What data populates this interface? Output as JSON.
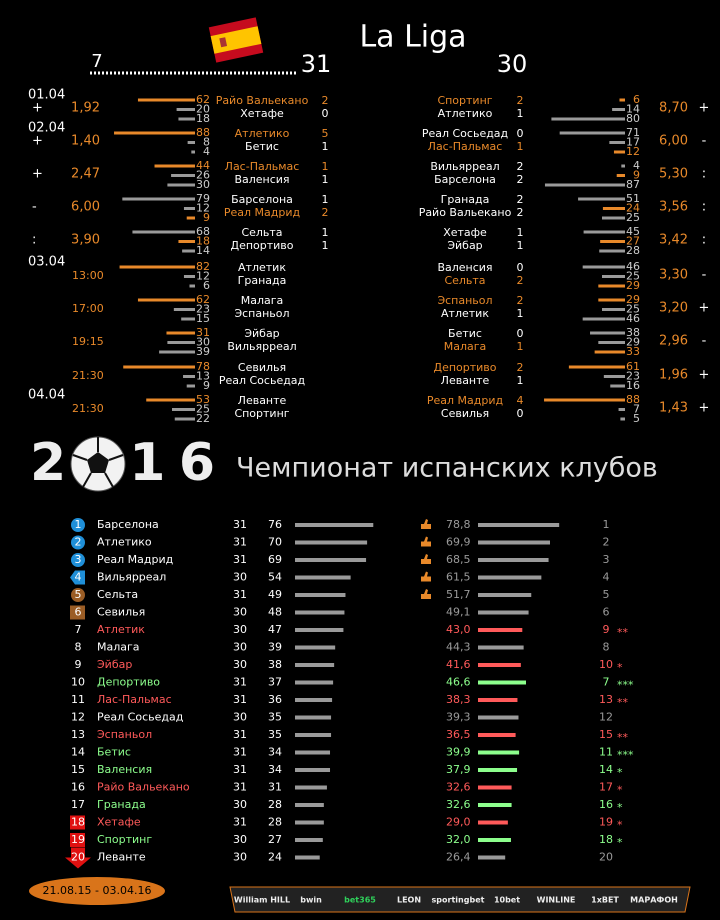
{
  "header": {
    "title": "La Liga",
    "played_left": "7",
    "round_left": "31",
    "round_right": "30"
  },
  "fixtures": {
    "left": [
      {
        "date": "01.04",
        "sign": "+",
        "odds": "1,92",
        "stats": [
          62,
          20,
          18
        ],
        "pick": 0,
        "home": "Райо Вальекано",
        "away": "Хетафе",
        "home_score": "2",
        "away_score": "0",
        "highlight": "home"
      },
      {
        "date": "02.04",
        "sign": "+",
        "odds": "1,40",
        "stats": [
          88,
          8,
          4
        ],
        "pick": 0,
        "home": "Атлетико",
        "away": "Бетис",
        "home_score": "5",
        "away_score": "1",
        "highlight": "home"
      },
      {
        "sign": "+",
        "odds": "2,47",
        "stats": [
          44,
          26,
          30
        ],
        "pick": 0,
        "home": "Лас-Пальмас",
        "away": "Валенсия",
        "home_score": "1",
        "away_score": "1",
        "highlight": "home"
      },
      {
        "sign": "-",
        "odds": "6,00",
        "stats": [
          79,
          12,
          9
        ],
        "pick": 2,
        "home": "Барселона",
        "away": "Реал Мадрид",
        "home_score": "1",
        "away_score": "2",
        "highlight": "away"
      },
      {
        "sign": ":",
        "odds": "3,90",
        "stats": [
          68,
          18,
          14
        ],
        "pick": 1,
        "home": "Сельта",
        "away": "Депортиво",
        "home_score": "1",
        "away_score": "1",
        "highlight": null
      },
      {
        "date": "03.04",
        "time": "13:00",
        "stats": [
          82,
          12,
          6
        ],
        "pick": 0,
        "home": "Атлетик",
        "away": "Гранада"
      },
      {
        "time": "17:00",
        "stats": [
          62,
          23,
          15
        ],
        "pick": 0,
        "home": "Малага",
        "away": "Эспаньол"
      },
      {
        "time": "19:15",
        "stats": [
          31,
          30,
          39
        ],
        "pick": 0,
        "home": "Эйбар",
        "away": "Вильярреал"
      },
      {
        "time": "21:30",
        "stats": [
          78,
          13,
          9
        ],
        "pick": 0,
        "home": "Севилья",
        "away": "Реал Сосьедад"
      },
      {
        "date": "04.04",
        "time": "21:30",
        "stats": [
          53,
          25,
          22
        ],
        "pick": 0,
        "home": "Леванте",
        "away": "Спортинг"
      }
    ],
    "right": [
      {
        "home": "Спортинг",
        "away": "Атлетико",
        "home_score": "2",
        "away_score": "1",
        "highlight": "home",
        "stats": [
          6,
          14,
          80
        ],
        "pick": 0,
        "odds": "8,70",
        "sign": "+"
      },
      {
        "home": "Реал Сосьедад",
        "away": "Лас-Пальмас",
        "home_score": "0",
        "away_score": "1",
        "highlight": "away",
        "stats": [
          71,
          17,
          12
        ],
        "pick": 2,
        "odds": "6,00",
        "sign": "-"
      },
      {
        "home": "Вильярреал",
        "away": "Барселона",
        "home_score": "2",
        "away_score": "2",
        "highlight": null,
        "stats": [
          4,
          9,
          87
        ],
        "pick": 1,
        "odds": "5,30",
        "sign": ":"
      },
      {
        "home": "Гранада",
        "away": "Райо Вальекано",
        "home_score": "2",
        "away_score": "2",
        "highlight": null,
        "stats": [
          51,
          24,
          25
        ],
        "pick": 1,
        "odds": "3,56",
        "sign": ":"
      },
      {
        "home": "Хетафе",
        "away": "Эйбар",
        "home_score": "1",
        "away_score": "1",
        "highlight": null,
        "stats": [
          45,
          27,
          28
        ],
        "pick": 1,
        "odds": "3,42",
        "sign": ":"
      },
      {
        "home": "Валенсия",
        "away": "Сельта",
        "home_score": "0",
        "away_score": "2",
        "highlight": "away",
        "stats": [
          46,
          25,
          29
        ],
        "pick": 2,
        "odds": "3,30",
        "sign": "-"
      },
      {
        "home": "Эспаньол",
        "away": "Атлетик",
        "home_score": "2",
        "away_score": "1",
        "highlight": "home",
        "stats": [
          29,
          25,
          46
        ],
        "pick": 0,
        "odds": "3,20",
        "sign": "+"
      },
      {
        "home": "Бетис",
        "away": "Малага",
        "home_score": "0",
        "away_score": "1",
        "highlight": "away",
        "stats": [
          38,
          29,
          33
        ],
        "pick": 2,
        "odds": "2,96",
        "sign": "-"
      },
      {
        "home": "Депортиво",
        "away": "Леванте",
        "home_score": "2",
        "away_score": "1",
        "highlight": "home",
        "stats": [
          61,
          23,
          16
        ],
        "pick": 0,
        "odds": "1,96",
        "sign": "+"
      },
      {
        "home": "Реал Мадрид",
        "away": "Севилья",
        "home_score": "4",
        "away_score": "0",
        "highlight": "home",
        "stats": [
          88,
          7,
          5
        ],
        "pick": 0,
        "odds": "1,43",
        "sign": "+"
      }
    ]
  },
  "season": {
    "year": "2016",
    "title": "Чемпионат испанских клубов"
  },
  "table": {
    "rows": [
      {
        "pos": "1",
        "team": "Барселона",
        "games": "31",
        "points": 76,
        "pct": 78.8,
        "pct_label": "78,8",
        "rank": "1",
        "stars": ""
      },
      {
        "pos": "2",
        "team": "Атлетико",
        "games": "31",
        "points": 70,
        "pct": 69.9,
        "pct_label": "69,9",
        "rank": "2",
        "stars": ""
      },
      {
        "pos": "3",
        "team": "Реал Мадрид",
        "games": "31",
        "points": 69,
        "pct": 68.5,
        "pct_label": "68,5",
        "rank": "3",
        "stars": ""
      },
      {
        "pos": "4",
        "team": "Вильярреал",
        "games": "30",
        "points": 54,
        "pct": 61.5,
        "pct_label": "61,5",
        "rank": "4",
        "stars": ""
      },
      {
        "pos": "5",
        "team": "Сельта",
        "games": "31",
        "points": 49,
        "pct": 51.7,
        "pct_label": "51,7",
        "rank": "5",
        "stars": ""
      },
      {
        "pos": "6",
        "team": "Севилья",
        "games": "30",
        "points": 48,
        "pct": 49.1,
        "pct_label": "49,1",
        "rank": "6",
        "stars": ""
      },
      {
        "pos": "7",
        "team": "Атлетик",
        "games": "30",
        "points": 47,
        "pct": 43.0,
        "pct_label": "43,0",
        "rank": "9",
        "stars": "**"
      },
      {
        "pos": "8",
        "team": "Малага",
        "games": "30",
        "points": 39,
        "pct": 44.3,
        "pct_label": "44,3",
        "rank": "8",
        "stars": ""
      },
      {
        "pos": "9",
        "team": "Эйбар",
        "games": "30",
        "points": 38,
        "pct": 41.6,
        "pct_label": "41,6",
        "rank": "10",
        "stars": "*"
      },
      {
        "pos": "10",
        "team": "Депортиво",
        "games": "31",
        "points": 37,
        "pct": 46.6,
        "pct_label": "46,6",
        "rank": "7",
        "stars": "***"
      },
      {
        "pos": "11",
        "team": "Лас-Пальмас",
        "games": "31",
        "points": 36,
        "pct": 38.3,
        "pct_label": "38,3",
        "rank": "13",
        "stars": "**"
      },
      {
        "pos": "12",
        "team": "Реал Сосьедад",
        "games": "30",
        "points": 35,
        "pct": 39.3,
        "pct_label": "39,3",
        "rank": "12",
        "stars": ""
      },
      {
        "pos": "13",
        "team": "Эспаньол",
        "games": "31",
        "points": 35,
        "pct": 36.5,
        "pct_label": "36,5",
        "rank": "15",
        "stars": "**"
      },
      {
        "pos": "14",
        "team": "Бетис",
        "games": "31",
        "points": 34,
        "pct": 39.9,
        "pct_label": "39,9",
        "rank": "11",
        "stars": "***"
      },
      {
        "pos": "15",
        "team": "Валенсия",
        "games": "31",
        "points": 34,
        "pct": 37.9,
        "pct_label": "37,9",
        "rank": "14",
        "stars": "*"
      },
      {
        "pos": "16",
        "team": "Райо Вальекано",
        "games": "31",
        "points": 31,
        "pct": 32.6,
        "pct_label": "32,6",
        "rank": "17",
        "stars": "*"
      },
      {
        "pos": "17",
        "team": "Гранада",
        "games": "30",
        "points": 28,
        "pct": 32.6,
        "pct_label": "32,6",
        "rank": "16",
        "stars": "*"
      },
      {
        "pos": "18",
        "team": "Хетафе",
        "games": "31",
        "points": 28,
        "pct": 29.0,
        "pct_label": "29,0",
        "rank": "19",
        "stars": "*"
      },
      {
        "pos": "19",
        "team": "Спортинг",
        "games": "30",
        "points": 27,
        "pct": 32.0,
        "pct_label": "32,0",
        "rank": "18",
        "stars": "*"
      },
      {
        "pos": "20",
        "team": "Леванте",
        "games": "30",
        "points": 24,
        "pct": 26.4,
        "pct_label": "26,4",
        "rank": "20",
        "stars": ""
      }
    ]
  },
  "footer": {
    "period": "21.08.15 - 03.04.16",
    "sponsors": [
      "William HILL",
      "bwin",
      "bet365",
      "LEON",
      "sportingbet",
      "10bet",
      "WINLINE",
      "1xBET",
      "МАРАФОН"
    ]
  }
}
